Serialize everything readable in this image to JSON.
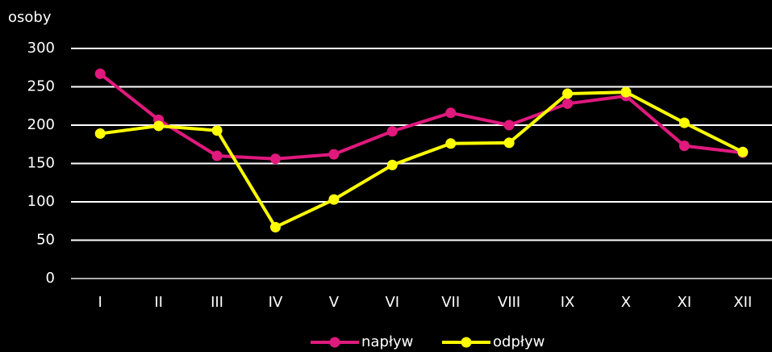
{
  "chart_data": {
    "type": "line",
    "y_label": "osoby",
    "categories": [
      "I",
      "II",
      "III",
      "IV",
      "V",
      "VI",
      "VII",
      "VIII",
      "IX",
      "X",
      "XI",
      "XII"
    ],
    "series": [
      {
        "name": "napływ",
        "color": "#e0197d",
        "values": [
          267,
          207,
          160,
          156,
          162,
          192,
          216,
          200,
          228,
          238,
          173,
          164
        ]
      },
      {
        "name": "odpływ",
        "color": "#ffff00",
        "values": [
          189,
          199,
          193,
          67,
          103,
          148,
          176,
          177,
          241,
          243,
          203,
          165
        ]
      }
    ],
    "ylim": [
      0,
      300
    ],
    "yticks": [
      0,
      50,
      100,
      150,
      200,
      250,
      300
    ],
    "grid": true,
    "legend": "bottom"
  }
}
